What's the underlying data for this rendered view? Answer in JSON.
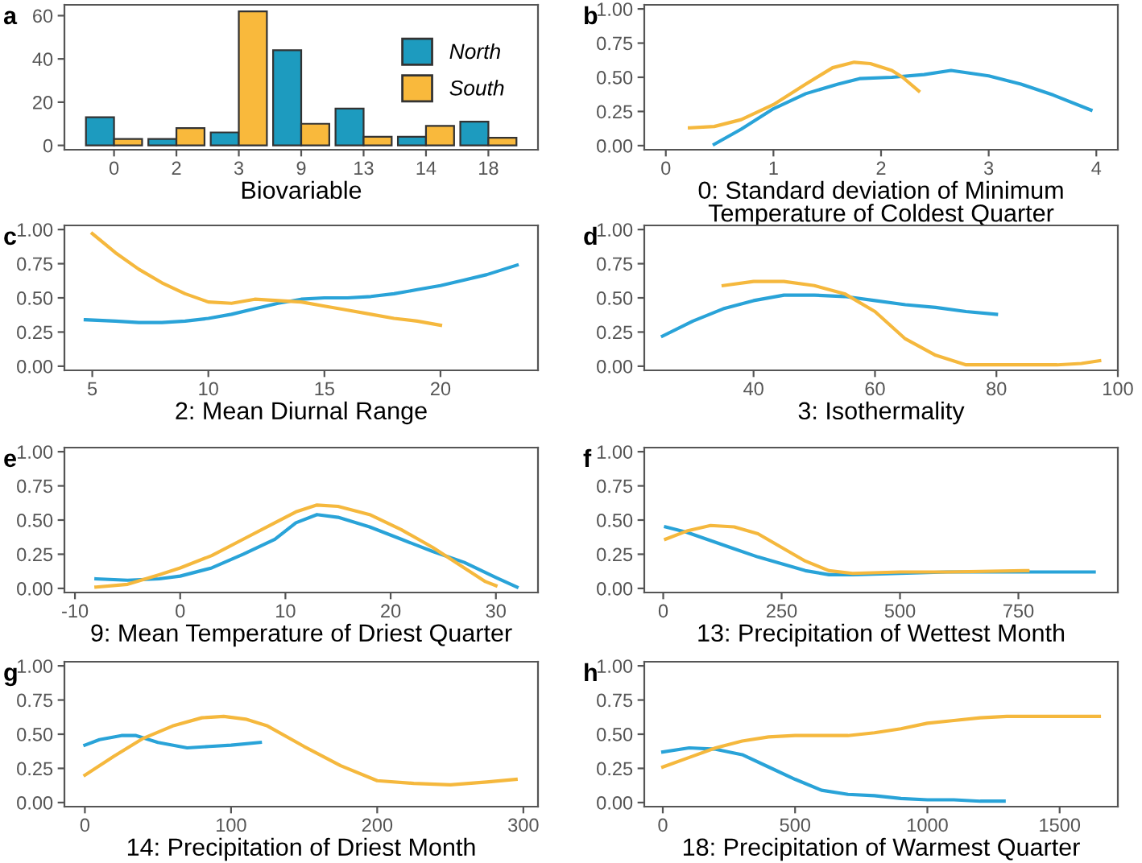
{
  "chart_data": [
    {
      "type": "bar",
      "title": "a",
      "xlabel": "Biovariable",
      "categories": [
        "0",
        "2",
        "3",
        "9",
        "13",
        "14",
        "18"
      ],
      "ylim": [
        -2,
        65
      ],
      "yticks": [
        0,
        20,
        40,
        60
      ],
      "legend": "right",
      "grid": false,
      "series": [
        {
          "name": "North",
          "color": "#1d9bbf",
          "values": [
            13,
            3,
            6,
            44,
            17,
            4,
            11
          ]
        },
        {
          "name": "South",
          "color": "#f9b93c",
          "values": [
            3,
            8,
            62,
            10,
            4,
            9,
            3.5
          ]
        }
      ]
    },
    {
      "type": "line",
      "title": "b",
      "xlabel": "0: Standard deviation of Minimum\nTemperature of Coldest Quarter",
      "xlim": [
        -0.2,
        4.2
      ],
      "xticks": [
        0,
        1,
        2,
        3,
        4
      ],
      "ylim": [
        -0.03,
        1.03
      ],
      "yticks": [
        {
          "value": 0,
          "label": "0.00"
        },
        {
          "value": 0.25,
          "label": "0.25"
        },
        {
          "value": 0.5,
          "label": "0.50"
        },
        {
          "value": 0.75,
          "label": "0.75"
        },
        {
          "value": 1,
          "label": "1.00"
        }
      ],
      "grid": false,
      "series": [
        {
          "color": "#29a3d8",
          "x": [
            0.45,
            0.7,
            1.0,
            1.3,
            1.6,
            1.8,
            2.1,
            2.4,
            2.65,
            3.0,
            3.3,
            3.6,
            3.95
          ],
          "values": [
            0.01,
            0.12,
            0.27,
            0.38,
            0.45,
            0.49,
            0.5,
            0.52,
            0.55,
            0.51,
            0.45,
            0.37,
            0.26
          ]
        },
        {
          "color": "#f5b83d",
          "x": [
            0.22,
            0.45,
            0.7,
            1.0,
            1.3,
            1.55,
            1.75,
            1.9,
            2.1,
            2.2,
            2.35
          ],
          "values": [
            0.13,
            0.14,
            0.19,
            0.3,
            0.45,
            0.57,
            0.61,
            0.6,
            0.55,
            0.5,
            0.4
          ]
        }
      ]
    },
    {
      "type": "line",
      "title": "c",
      "xlabel": "2: Mean Diurnal Range",
      "xlim": [
        3.8,
        24.2
      ],
      "xticks": [
        5,
        10,
        15,
        20
      ],
      "ylim": [
        -0.03,
        1.03
      ],
      "yticks": [
        {
          "value": 0,
          "label": "0.00"
        },
        {
          "value": 0.25,
          "label": "0.25"
        },
        {
          "value": 0.5,
          "label": "0.50"
        },
        {
          "value": 0.75,
          "label": "0.75"
        },
        {
          "value": 1,
          "label": "1.00"
        }
      ],
      "grid": false,
      "series": [
        {
          "color": "#29a3d8",
          "x": [
            4.7,
            6,
            7,
            8,
            9,
            10,
            11,
            12,
            13,
            14,
            15,
            16,
            17,
            18,
            19,
            20,
            21,
            22,
            23.3
          ],
          "values": [
            0.34,
            0.33,
            0.32,
            0.32,
            0.33,
            0.35,
            0.38,
            0.42,
            0.46,
            0.49,
            0.5,
            0.5,
            0.51,
            0.53,
            0.56,
            0.59,
            0.63,
            0.67,
            0.74
          ]
        },
        {
          "color": "#f5b83d",
          "x": [
            5,
            6,
            7,
            8,
            9,
            10,
            11,
            12,
            13,
            14,
            15,
            16,
            17,
            18,
            19,
            20
          ],
          "values": [
            0.97,
            0.83,
            0.71,
            0.61,
            0.53,
            0.47,
            0.46,
            0.49,
            0.48,
            0.47,
            0.44,
            0.41,
            0.38,
            0.35,
            0.33,
            0.3
          ]
        }
      ]
    },
    {
      "type": "line",
      "title": "d",
      "xlabel": "3: Isothermality",
      "xlim": [
        22,
        100
      ],
      "xticks": [
        40,
        60,
        80,
        100
      ],
      "ylim": [
        -0.03,
        1.03
      ],
      "yticks": [
        {
          "value": 0,
          "label": "0.00"
        },
        {
          "value": 0.25,
          "label": "0.25"
        },
        {
          "value": 0.5,
          "label": "0.50"
        },
        {
          "value": 0.75,
          "label": "0.75"
        },
        {
          "value": 1,
          "label": "1.00"
        }
      ],
      "grid": false,
      "series": [
        {
          "color": "#29a3d8",
          "x": [
            25,
            30,
            35,
            40,
            45,
            50,
            55,
            60,
            65,
            70,
            75,
            80
          ],
          "values": [
            0.22,
            0.33,
            0.42,
            0.48,
            0.52,
            0.52,
            0.51,
            0.48,
            0.45,
            0.43,
            0.4,
            0.38
          ]
        },
        {
          "color": "#f5b83d",
          "x": [
            35,
            40,
            45,
            50,
            55,
            60,
            65,
            70,
            75,
            80,
            90,
            94,
            97
          ],
          "values": [
            0.59,
            0.62,
            0.62,
            0.59,
            0.53,
            0.4,
            0.2,
            0.08,
            0.01,
            0.01,
            0.01,
            0.02,
            0.04
          ]
        }
      ]
    },
    {
      "type": "line",
      "title": "e",
      "xlabel": "9: Mean Temperature of Driest Quarter",
      "xlim": [
        -11,
        34
      ],
      "xticks": [
        -10,
        0,
        10,
        20,
        30
      ],
      "ylim": [
        -0.03,
        1.03
      ],
      "yticks": [
        {
          "value": 0,
          "label": "0.00"
        },
        {
          "value": 0.25,
          "label": "0.25"
        },
        {
          "value": 0.5,
          "label": "0.50"
        },
        {
          "value": 0.75,
          "label": "0.75"
        },
        {
          "value": 1,
          "label": "1.00"
        }
      ],
      "grid": false,
      "series": [
        {
          "color": "#29a3d8",
          "x": [
            -8,
            -5,
            -2,
            0,
            3,
            6,
            9,
            11,
            13,
            15,
            18,
            21,
            24,
            27,
            30,
            32
          ],
          "values": [
            0.07,
            0.06,
            0.07,
            0.09,
            0.15,
            0.25,
            0.36,
            0.48,
            0.54,
            0.52,
            0.45,
            0.36,
            0.27,
            0.19,
            0.08,
            0.01
          ]
        },
        {
          "color": "#f5b83d",
          "x": [
            -8,
            -5,
            -2,
            0,
            3,
            6,
            9,
            11,
            13,
            15,
            18,
            21,
            24,
            27,
            29,
            30
          ],
          "values": [
            0.01,
            0.03,
            0.1,
            0.15,
            0.24,
            0.36,
            0.48,
            0.56,
            0.61,
            0.6,
            0.54,
            0.43,
            0.3,
            0.15,
            0.05,
            0.02
          ]
        }
      ]
    },
    {
      "type": "line",
      "title": "f",
      "xlabel": "13: Precipitation of Wettest Month",
      "xlim": [
        -40,
        960
      ],
      "xticks": [
        0,
        250,
        500,
        750
      ],
      "ylim": [
        -0.03,
        1.03
      ],
      "yticks": [
        {
          "value": 0,
          "label": "0.00"
        },
        {
          "value": 0.25,
          "label": "0.25"
        },
        {
          "value": 0.5,
          "label": "0.50"
        },
        {
          "value": 0.75,
          "label": "0.75"
        },
        {
          "value": 1,
          "label": "1.00"
        }
      ],
      "grid": false,
      "series": [
        {
          "color": "#29a3d8",
          "x": [
            5,
            50,
            100,
            150,
            200,
            250,
            300,
            350,
            400,
            500,
            600,
            750,
            910
          ],
          "values": [
            0.45,
            0.41,
            0.35,
            0.29,
            0.23,
            0.18,
            0.13,
            0.1,
            0.1,
            0.11,
            0.12,
            0.12,
            0.12
          ]
        },
        {
          "color": "#f5b83d",
          "x": [
            5,
            50,
            100,
            150,
            200,
            250,
            300,
            350,
            400,
            500,
            600,
            770
          ],
          "values": [
            0.36,
            0.42,
            0.46,
            0.45,
            0.4,
            0.3,
            0.2,
            0.13,
            0.11,
            0.12,
            0.12,
            0.13
          ]
        }
      ]
    },
    {
      "type": "line",
      "title": "g",
      "xlabel": "14: Precipitation of Driest Month",
      "xlim": [
        -14,
        310
      ],
      "xticks": [
        0,
        100,
        200,
        300
      ],
      "ylim": [
        -0.03,
        1.03
      ],
      "yticks": [
        {
          "value": 0,
          "label": "0.00"
        },
        {
          "value": 0.25,
          "label": "0.25"
        },
        {
          "value": 0.5,
          "label": "0.50"
        },
        {
          "value": 0.75,
          "label": "0.75"
        },
        {
          "value": 1,
          "label": "1.00"
        }
      ],
      "grid": false,
      "series": [
        {
          "color": "#29a3d8",
          "x": [
            0,
            10,
            25,
            35,
            50,
            70,
            85,
            100,
            120
          ],
          "values": [
            0.42,
            0.46,
            0.49,
            0.49,
            0.44,
            0.4,
            0.41,
            0.42,
            0.44
          ]
        },
        {
          "color": "#f5b83d",
          "x": [
            0,
            20,
            40,
            60,
            80,
            95,
            110,
            125,
            150,
            175,
            200,
            225,
            250,
            275,
            295
          ],
          "values": [
            0.2,
            0.34,
            0.47,
            0.56,
            0.62,
            0.63,
            0.61,
            0.56,
            0.41,
            0.27,
            0.16,
            0.14,
            0.13,
            0.15,
            0.17
          ]
        }
      ]
    },
    {
      "type": "line",
      "title": "h",
      "xlabel": "18: Precipitation of Warmest Quarter",
      "xlim": [
        -70,
        1720
      ],
      "xticks": [
        0,
        500,
        1000,
        1500
      ],
      "ylim": [
        -0.03,
        1.03
      ],
      "yticks": [
        {
          "value": 0,
          "label": "0.00"
        },
        {
          "value": 0.25,
          "label": "0.25"
        },
        {
          "value": 0.5,
          "label": "0.50"
        },
        {
          "value": 0.75,
          "label": "0.75"
        },
        {
          "value": 1,
          "label": "1.00"
        }
      ],
      "grid": false,
      "series": [
        {
          "color": "#29a3d8",
          "x": [
            0,
            100,
            200,
            300,
            400,
            500,
            600,
            700,
            800,
            900,
            1000,
            1100,
            1200,
            1290
          ],
          "values": [
            0.37,
            0.4,
            0.39,
            0.35,
            0.26,
            0.17,
            0.09,
            0.06,
            0.05,
            0.03,
            0.02,
            0.02,
            0.01,
            0.01
          ]
        },
        {
          "color": "#f5b83d",
          "x": [
            0,
            100,
            200,
            300,
            400,
            500,
            600,
            700,
            800,
            900,
            1000,
            1100,
            1200,
            1300,
            1400,
            1650
          ],
          "values": [
            0.26,
            0.33,
            0.4,
            0.45,
            0.48,
            0.49,
            0.49,
            0.49,
            0.51,
            0.54,
            0.58,
            0.6,
            0.62,
            0.63,
            0.63,
            0.63
          ]
        }
      ]
    }
  ]
}
